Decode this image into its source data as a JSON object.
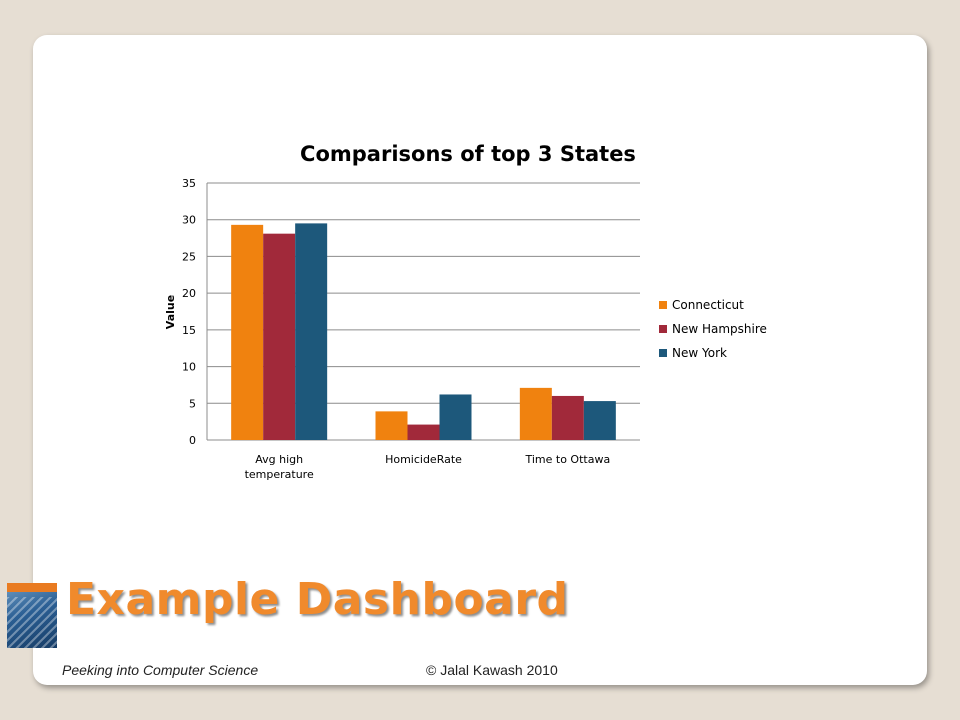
{
  "chart_data": {
    "type": "bar",
    "title": "Comparisons of top 3 States",
    "ylabel": "Value",
    "xlabel": "",
    "ylim": [
      0,
      35
    ],
    "yticks": [
      0,
      5,
      10,
      15,
      20,
      25,
      30,
      35
    ],
    "grid": true,
    "legend_position": "right",
    "categories": [
      [
        "Avg high",
        "temperature"
      ],
      [
        "HomicideRate"
      ],
      [
        "Time to Ottawa"
      ]
    ],
    "series": [
      {
        "name": "Connecticut",
        "color": "#f0820f",
        "values": [
          29.3,
          3.9,
          7.1
        ]
      },
      {
        "name": "New Hampshire",
        "color": "#a1293a",
        "values": [
          28.1,
          2.1,
          6.0
        ]
      },
      {
        "name": "New York",
        "color": "#1d587b",
        "values": [
          29.5,
          6.2,
          5.3
        ]
      }
    ]
  },
  "slide": {
    "heading": "Example Dashboard",
    "footer_left": "Peeking into Computer Science",
    "footer_right": "© Jalal Kawash 2010",
    "book_icon": "book-cover-icon",
    "accent_color": "#f08a2c"
  }
}
